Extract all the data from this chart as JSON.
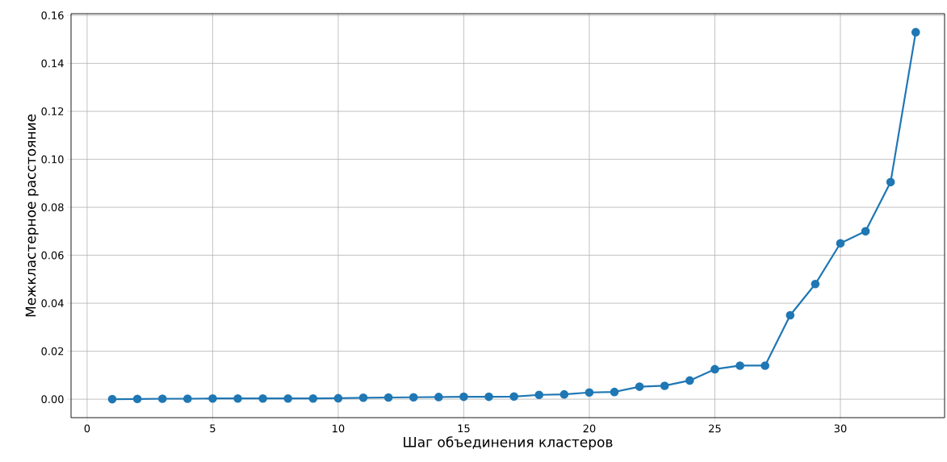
{
  "chart_data": {
    "type": "line",
    "xlabel": "Шаг объединения кластеров",
    "ylabel": "Межкластерное расстояние",
    "x": [
      1,
      2,
      3,
      4,
      5,
      6,
      7,
      8,
      9,
      10,
      11,
      12,
      13,
      14,
      15,
      16,
      17,
      18,
      19,
      20,
      21,
      22,
      23,
      24,
      25,
      26,
      27,
      28,
      29,
      30,
      31,
      32,
      33
    ],
    "series": [
      {
        "color": "#1f77b4",
        "values": [
          0.0,
          0.0001,
          0.0002,
          0.0002,
          0.0003,
          0.0003,
          0.0003,
          0.0003,
          0.0003,
          0.0004,
          0.0006,
          0.0007,
          0.0008,
          0.0009,
          0.001,
          0.001,
          0.0011,
          0.0018,
          0.002,
          0.0028,
          0.003,
          0.0052,
          0.0056,
          0.0078,
          0.0125,
          0.014,
          0.014,
          0.035,
          0.048,
          0.065,
          0.07,
          0.0905,
          0.153
        ]
      }
    ],
    "xlim": [
      -0.64,
      34.15
    ],
    "ylim": [
      -0.0077,
      0.1607
    ],
    "xticks": [
      0,
      5,
      10,
      15,
      20,
      25,
      30
    ],
    "yticks": [
      {
        "value": 0,
        "label": "0.00"
      },
      {
        "value": 0.02,
        "label": "0.02"
      },
      {
        "value": 0.04,
        "label": "0.04"
      },
      {
        "value": 0.06,
        "label": "0.06"
      },
      {
        "value": 0.08,
        "label": "0.08"
      },
      {
        "value": 0.1,
        "label": "0.10"
      },
      {
        "value": 0.12,
        "label": "0.12"
      },
      {
        "value": 0.14,
        "label": "0.14"
      },
      {
        "value": 0.16,
        "label": "0.16"
      }
    ],
    "grid": true,
    "marker": "circle",
    "line_style": "solid"
  }
}
